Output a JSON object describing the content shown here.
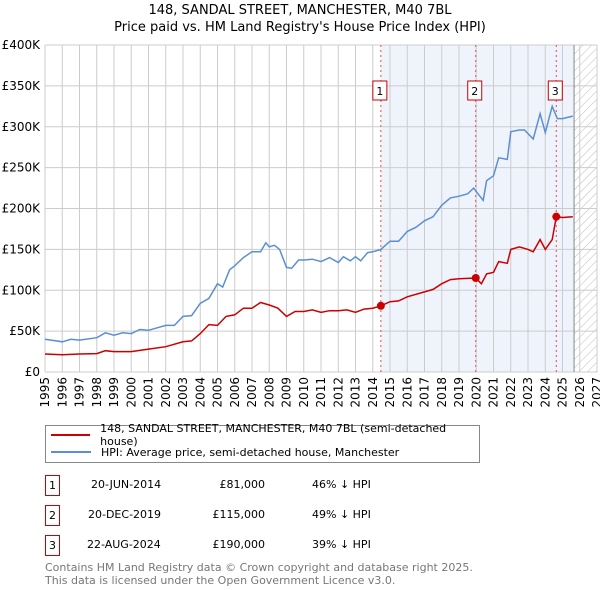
{
  "title": "148, SANDAL STREET, MANCHESTER, M40 7BL",
  "subtitle": "Price paid vs. HM Land Registry's House Price Index (HPI)",
  "colors": {
    "property": "#cc0000",
    "hpi": "#5b8fd4",
    "shade": "#eef3fc"
  },
  "chart_data": {
    "type": "line",
    "xlim": [
      1995,
      2027
    ],
    "ylim": [
      0,
      400000
    ],
    "y_ticks": [
      {
        "v": 0,
        "label": "£0"
      },
      {
        "v": 50000,
        "label": "£50K"
      },
      {
        "v": 100000,
        "label": "£100K"
      },
      {
        "v": 150000,
        "label": "£150K"
      },
      {
        "v": 200000,
        "label": "£200K"
      },
      {
        "v": 250000,
        "label": "£250K"
      },
      {
        "v": 300000,
        "label": "£300K"
      },
      {
        "v": 350000,
        "label": "£350K"
      },
      {
        "v": 400000,
        "label": "£400K"
      }
    ],
    "x_ticks": [
      "1995",
      "1996",
      "1997",
      "1998",
      "1999",
      "2000",
      "2001",
      "2002",
      "2003",
      "2004",
      "2005",
      "2006",
      "2007",
      "2008",
      "2009",
      "2010",
      "2011",
      "2012",
      "2013",
      "2014",
      "2015",
      "2016",
      "2017",
      "2018",
      "2019",
      "2020",
      "2021",
      "2022",
      "2023",
      "2024",
      "2025",
      "2026",
      "2027"
    ],
    "shaded_range": [
      2014.47,
      2025.67
    ],
    "forecast_hatch_start": 2025.67,
    "series": [
      {
        "name": "148, SANDAL STREET, MANCHESTER, M40 7BL (semi-detached house)",
        "color": "#cc0000",
        "points": [
          [
            1995,
            22000
          ],
          [
            1996,
            21000
          ],
          [
            1997,
            22000
          ],
          [
            1998,
            22500
          ],
          [
            1998.5,
            26000
          ],
          [
            1999,
            25000
          ],
          [
            2000,
            25000
          ],
          [
            2001,
            28000
          ],
          [
            2002,
            31000
          ],
          [
            2003,
            37000
          ],
          [
            2003.5,
            38000
          ],
          [
            2004,
            47000
          ],
          [
            2004.5,
            58000
          ],
          [
            2005,
            57000
          ],
          [
            2005.5,
            68000
          ],
          [
            2006,
            70000
          ],
          [
            2006.5,
            78000
          ],
          [
            2007,
            78000
          ],
          [
            2007.5,
            85000
          ],
          [
            2008,
            82000
          ],
          [
            2008.5,
            78000
          ],
          [
            2009,
            68000
          ],
          [
            2009.5,
            74000
          ],
          [
            2010,
            74000
          ],
          [
            2010.5,
            76000
          ],
          [
            2011,
            73000
          ],
          [
            2011.5,
            75000
          ],
          [
            2012,
            75000
          ],
          [
            2012.5,
            76000
          ],
          [
            2013,
            73000
          ],
          [
            2013.5,
            77000
          ],
          [
            2014,
            78000
          ],
          [
            2014.47,
            81000
          ],
          [
            2015,
            86000
          ],
          [
            2015.5,
            87000
          ],
          [
            2016,
            92000
          ],
          [
            2017,
            98000
          ],
          [
            2017.5,
            101000
          ],
          [
            2018,
            108000
          ],
          [
            2018.5,
            113000
          ],
          [
            2019,
            114000
          ],
          [
            2019.97,
            115000
          ],
          [
            2020.3,
            108000
          ],
          [
            2020.6,
            120000
          ],
          [
            2021,
            122000
          ],
          [
            2021.3,
            135000
          ],
          [
            2021.8,
            133000
          ],
          [
            2022,
            150000
          ],
          [
            2022.5,
            153000
          ],
          [
            2023,
            150000
          ],
          [
            2023.3,
            147000
          ],
          [
            2023.7,
            162000
          ],
          [
            2024,
            150000
          ],
          [
            2024.4,
            162000
          ],
          [
            2024.64,
            190000
          ],
          [
            2025,
            189000
          ],
          [
            2025.6,
            190000
          ]
        ]
      },
      {
        "name": "HPI: Average price, semi-detached house, Manchester",
        "color": "#5b8fd4",
        "points": [
          [
            1995,
            40000
          ],
          [
            1996,
            37000
          ],
          [
            1996.5,
            40000
          ],
          [
            1997,
            39000
          ],
          [
            1998,
            42000
          ],
          [
            1998.5,
            48000
          ],
          [
            1999,
            45000
          ],
          [
            1999.5,
            48000
          ],
          [
            2000,
            47000
          ],
          [
            2000.5,
            52000
          ],
          [
            2001,
            51000
          ],
          [
            2002,
            57000
          ],
          [
            2002.5,
            57000
          ],
          [
            2003,
            68000
          ],
          [
            2003.5,
            69000
          ],
          [
            2004,
            84000
          ],
          [
            2004.5,
            90000
          ],
          [
            2005,
            108000
          ],
          [
            2005.3,
            104000
          ],
          [
            2005.7,
            125000
          ],
          [
            2006,
            130000
          ],
          [
            2006.5,
            140000
          ],
          [
            2007,
            147000
          ],
          [
            2007.5,
            147000
          ],
          [
            2007.8,
            158000
          ],
          [
            2008,
            153000
          ],
          [
            2008.3,
            155000
          ],
          [
            2008.6,
            150000
          ],
          [
            2009,
            128000
          ],
          [
            2009.3,
            127000
          ],
          [
            2009.7,
            137000
          ],
          [
            2010,
            137000
          ],
          [
            2010.5,
            138000
          ],
          [
            2011,
            135000
          ],
          [
            2011.5,
            140000
          ],
          [
            2012,
            134000
          ],
          [
            2012.3,
            141000
          ],
          [
            2012.7,
            136000
          ],
          [
            2013,
            141000
          ],
          [
            2013.3,
            136000
          ],
          [
            2013.7,
            146000
          ],
          [
            2014,
            147000
          ],
          [
            2014.47,
            150000
          ],
          [
            2015,
            160000
          ],
          [
            2015.5,
            160000
          ],
          [
            2016,
            172000
          ],
          [
            2016.5,
            177000
          ],
          [
            2017,
            185000
          ],
          [
            2017.5,
            190000
          ],
          [
            2018,
            204000
          ],
          [
            2018.5,
            213000
          ],
          [
            2019,
            215000
          ],
          [
            2019.5,
            218000
          ],
          [
            2019.85,
            225000
          ],
          [
            2020.1,
            218000
          ],
          [
            2020.4,
            210000
          ],
          [
            2020.6,
            234000
          ],
          [
            2021,
            240000
          ],
          [
            2021.3,
            262000
          ],
          [
            2021.8,
            260000
          ],
          [
            2022,
            294000
          ],
          [
            2022.5,
            296000
          ],
          [
            2022.8,
            296000
          ],
          [
            2023.3,
            285000
          ],
          [
            2023.7,
            316000
          ],
          [
            2024,
            293000
          ],
          [
            2024.4,
            325000
          ],
          [
            2024.7,
            310000
          ],
          [
            2025,
            310000
          ],
          [
            2025.6,
            313000
          ]
        ]
      }
    ],
    "sales": [
      {
        "id": "1",
        "x": 2014.47,
        "y": 81000
      },
      {
        "id": "2",
        "x": 2019.97,
        "y": 115000
      },
      {
        "id": "3",
        "x": 2024.64,
        "y": 190000
      }
    ]
  },
  "legend": {
    "property": "148, SANDAL STREET, MANCHESTER, M40 7BL (semi-detached house)",
    "hpi": "HPI: Average price, semi-detached house, Manchester"
  },
  "transactions": [
    {
      "id": "1",
      "date": "20-JUN-2014",
      "price": "£81,000",
      "delta": "46% ↓ HPI"
    },
    {
      "id": "2",
      "date": "20-DEC-2019",
      "price": "£115,000",
      "delta": "49% ↓ HPI"
    },
    {
      "id": "3",
      "date": "22-AUG-2024",
      "price": "£190,000",
      "delta": "39% ↓ HPI"
    }
  ],
  "footer": {
    "line1": "Contains HM Land Registry data © Crown copyright and database right 2025.",
    "line2": "This data is licensed under the Open Government Licence v3.0."
  }
}
